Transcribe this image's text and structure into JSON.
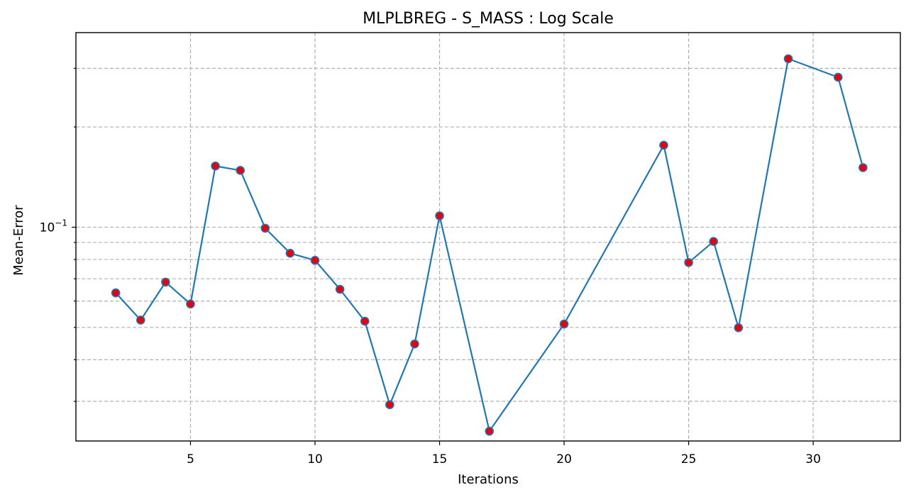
{
  "chart_data": {
    "type": "line",
    "title": "MLPLBREG - S_MASS : Log Scale",
    "xlabel": "Iterations",
    "ylabel": "Mean-Error",
    "yscale": "log",
    "xlim": [
      0.4,
      33.5
    ],
    "ylim": [
      0.0228,
      0.384
    ],
    "grid": true,
    "x_ticks": [
      5,
      10,
      15,
      20,
      25,
      30
    ],
    "y_major_tick": {
      "value": 0.1,
      "label_base": "10",
      "label_exp": "−1"
    },
    "y_minor_grid": [
      0.03,
      0.04,
      0.05,
      0.06,
      0.07,
      0.08,
      0.09,
      0.2,
      0.3
    ],
    "series": [
      {
        "line_color": "#1f77b4",
        "marker_color": "#e8000b",
        "points": [
          {
            "x": 2,
            "y": 0.0635
          },
          {
            "x": 3,
            "y": 0.0526
          },
          {
            "x": 4,
            "y": 0.0684
          },
          {
            "x": 5,
            "y": 0.0588
          },
          {
            "x": 6,
            "y": 0.1526
          },
          {
            "x": 7,
            "y": 0.1481
          },
          {
            "x": 8,
            "y": 0.0993
          },
          {
            "x": 9,
            "y": 0.0835
          },
          {
            "x": 10,
            "y": 0.0795
          },
          {
            "x": 11,
            "y": 0.0651
          },
          {
            "x": 12,
            "y": 0.0522
          },
          {
            "x": 13,
            "y": 0.0293
          },
          {
            "x": 14,
            "y": 0.0446
          },
          {
            "x": 15,
            "y": 0.1082
          },
          {
            "x": 17,
            "y": 0.0244
          },
          {
            "x": 20,
            "y": 0.0512
          },
          {
            "x": 24,
            "y": 0.1763
          },
          {
            "x": 25,
            "y": 0.0783
          },
          {
            "x": 26,
            "y": 0.0906
          },
          {
            "x": 27,
            "y": 0.0499
          },
          {
            "x": 29,
            "y": 0.3205
          },
          {
            "x": 31,
            "y": 0.282
          },
          {
            "x": 32,
            "y": 0.151
          }
        ]
      }
    ]
  }
}
